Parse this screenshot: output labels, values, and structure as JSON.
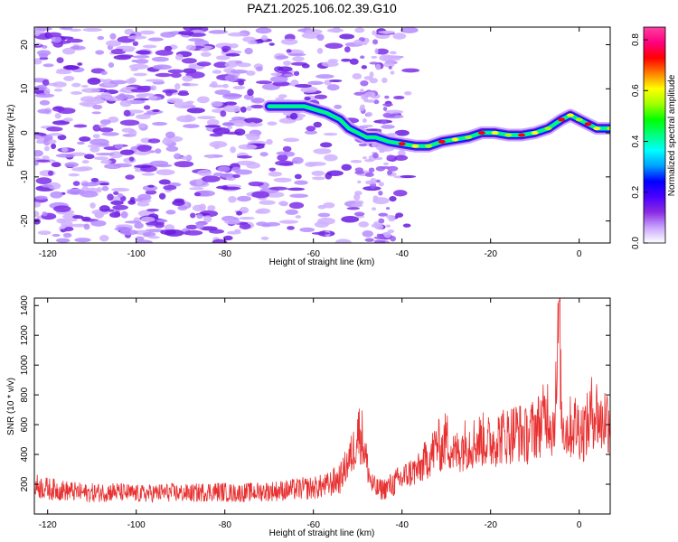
{
  "title": "PAZ1.2025.106.02.39.G10",
  "chart_data": [
    {
      "type": "heatmap",
      "xlabel": "Height of straight line (km)",
      "ylabel": "Frequency (Hz)",
      "xlim": [
        -123,
        7
      ],
      "ylim": [
        -25,
        24
      ],
      "x_ticks": [
        -120,
        -100,
        -80,
        -60,
        -40,
        -20,
        0
      ],
      "y_ticks": [
        -20,
        -10,
        0,
        10,
        20
      ],
      "colorbar": {
        "label": "Normalized spectral amplitude",
        "range": [
          0,
          0.85
        ],
        "ticks": [
          0.0,
          0.2,
          0.4,
          0.6,
          0.8
        ],
        "colormap": [
          "#ffffff",
          "#c9a6ff",
          "#8a2be2",
          "#4b00ff",
          "#0000ff",
          "#00a0ff",
          "#00ffff",
          "#00ff80",
          "#00ff00",
          "#a0ff00",
          "#ffff00",
          "#ff8000",
          "#ff0000",
          "#ff0080",
          "#ff40a0"
        ]
      },
      "tone_track": [
        {
          "x": -70,
          "y": 6
        },
        {
          "x": -62,
          "y": 6
        },
        {
          "x": -57,
          "y": 4.5
        },
        {
          "x": -54,
          "y": 3
        },
        {
          "x": -52,
          "y": 1
        },
        {
          "x": -50,
          "y": 0
        },
        {
          "x": -48,
          "y": -1
        },
        {
          "x": -46,
          "y": -1
        },
        {
          "x": -43,
          "y": -2
        },
        {
          "x": -40,
          "y": -2.5
        },
        {
          "x": -37,
          "y": -3
        },
        {
          "x": -34,
          "y": -3
        },
        {
          "x": -31,
          "y": -2
        },
        {
          "x": -28,
          "y": -1.5
        },
        {
          "x": -25,
          "y": -1
        },
        {
          "x": -22,
          "y": 0
        },
        {
          "x": -19,
          "y": 0
        },
        {
          "x": -16,
          "y": -0.5
        },
        {
          "x": -13,
          "y": -0.5
        },
        {
          "x": -10,
          "y": 0
        },
        {
          "x": -7,
          "y": 1
        },
        {
          "x": -4,
          "y": 3
        },
        {
          "x": -2,
          "y": 4
        },
        {
          "x": 0,
          "y": 3
        },
        {
          "x": 2,
          "y": 2
        },
        {
          "x": 4,
          "y": 1
        },
        {
          "x": 7,
          "y": 1
        }
      ]
    },
    {
      "type": "line",
      "xlabel": "Height of straight line (km)",
      "ylabel": "SNR (10 * v/v)",
      "xlim": [
        -123,
        7
      ],
      "ylim": [
        0,
        1450
      ],
      "x_ticks": [
        -120,
        -100,
        -80,
        -60,
        -40,
        -20,
        0
      ],
      "y_ticks": [
        200,
        400,
        600,
        800,
        1000,
        1200,
        1400
      ],
      "line_color": "#e83030",
      "sampled_x": [
        -123,
        -120,
        -117,
        -114,
        -111,
        -108,
        -105,
        -102,
        -99,
        -96,
        -93,
        -90,
        -87,
        -84,
        -81,
        -78,
        -75,
        -72,
        -69,
        -66,
        -63,
        -60,
        -57,
        -54,
        -51,
        -50,
        -49,
        -48,
        -47,
        -46,
        -45,
        -44,
        -42,
        -40,
        -38,
        -36,
        -35,
        -34,
        -33,
        -32,
        -31,
        -30,
        -29,
        -28,
        -26,
        -24,
        -22,
        -20,
        -18,
        -16,
        -14,
        -12,
        -10,
        -9,
        -8,
        -7,
        -6,
        -5,
        -4.5,
        -4,
        -3,
        -2,
        -1,
        0,
        1,
        2,
        3,
        4,
        5,
        6,
        7
      ],
      "sampled_y": [
        190,
        170,
        160,
        150,
        140,
        145,
        150,
        140,
        135,
        140,
        145,
        140,
        140,
        150,
        150,
        140,
        145,
        150,
        155,
        160,
        170,
        175,
        190,
        240,
        420,
        560,
        520,
        350,
        210,
        170,
        165,
        170,
        200,
        240,
        280,
        300,
        350,
        380,
        420,
        480,
        430,
        520,
        440,
        400,
        470,
        480,
        500,
        480,
        520,
        530,
        560,
        520,
        580,
        600,
        640,
        700,
        560,
        850,
        1420,
        650,
        560,
        580,
        600,
        580,
        560,
        600,
        700,
        680,
        600,
        660,
        620
      ]
    }
  ]
}
